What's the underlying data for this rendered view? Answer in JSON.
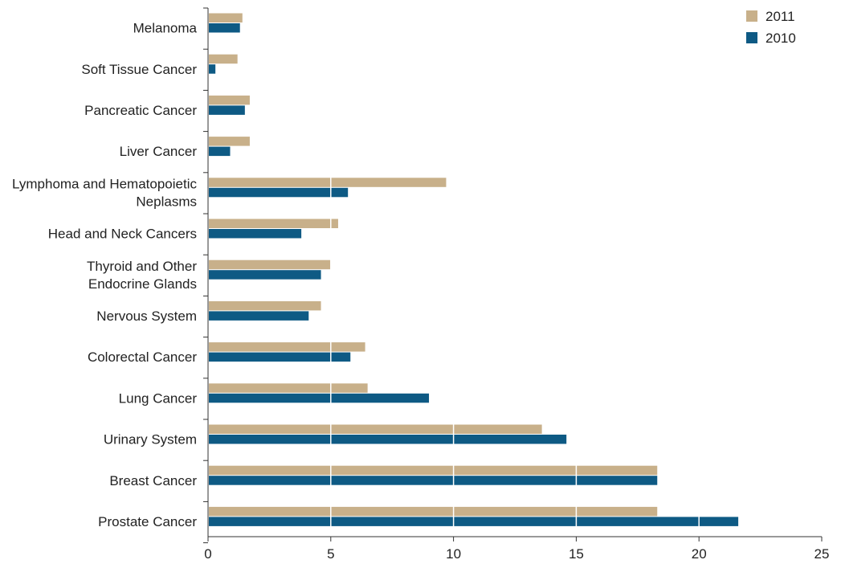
{
  "chart_data": {
    "type": "bar",
    "orientation": "horizontal",
    "categories": [
      "Melanoma",
      "Soft Tissue Cancer",
      "Pancreatic Cancer",
      "Liver Cancer",
      "Lymphoma and Hematopoietic Neplasms",
      "Head and Neck Cancers",
      "Thyroid and Other Endocrine Glands",
      "Nervous System",
      "Colorectal Cancer",
      "Lung Cancer",
      "Urinary System",
      "Breast Cancer",
      "Prostate Cancer"
    ],
    "series": [
      {
        "name": "2011",
        "color": "#c8b08a",
        "values": [
          1.4,
          1.2,
          1.7,
          1.7,
          9.7,
          5.3,
          5.0,
          4.6,
          6.4,
          6.5,
          13.6,
          18.3,
          18.3
        ]
      },
      {
        "name": "2010",
        "color": "#0e5a84",
        "values": [
          1.3,
          0.3,
          1.5,
          0.9,
          5.7,
          3.8,
          4.6,
          4.1,
          5.8,
          9.0,
          14.6,
          18.3,
          21.6
        ]
      }
    ],
    "title": "",
    "xlabel": "",
    "ylabel": "",
    "xlim": [
      0,
      25
    ],
    "xticks": [
      0,
      5,
      10,
      15,
      20,
      25
    ],
    "grid": "vertical lines over bars",
    "legend": "top-right"
  }
}
